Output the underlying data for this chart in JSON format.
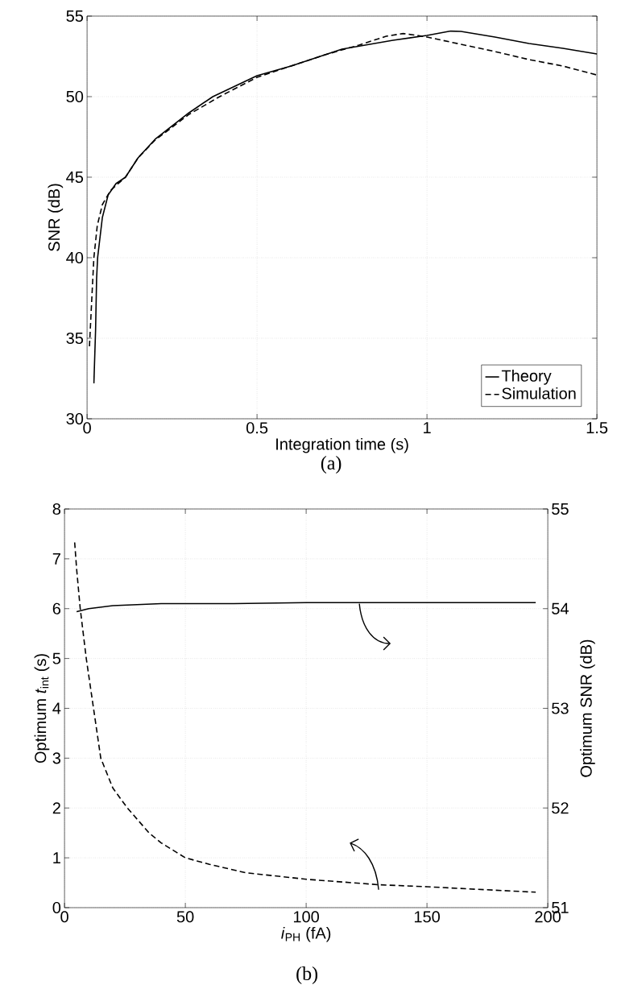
{
  "chart_data": [
    {
      "type": "line",
      "xlabel": "Integration time (s)",
      "ylabel": "SNR (dB)",
      "annotations": [
        "(a)"
      ],
      "xlim": [
        0,
        1.5
      ],
      "ylim": [
        30,
        55
      ],
      "xticks": [
        0,
        0.5,
        1,
        1.5
      ],
      "yticks": [
        30,
        35,
        40,
        45,
        50,
        55
      ],
      "grid": true,
      "legend": "bottom right",
      "series": [
        {
          "name": "Theory",
          "color": "#000000",
          "line_style": "solid",
          "x": [
            0.02,
            0.025,
            0.028,
            0.031,
            0.045,
            0.062,
            0.085,
            0.113,
            0.15,
            0.2,
            0.3,
            0.37,
            0.5,
            0.6,
            0.75,
            0.9,
            1.0,
            1.07,
            1.1,
            1.2,
            1.3,
            1.4,
            1.5
          ],
          "values": [
            32.2,
            35.5,
            38.7,
            40,
            42.5,
            43.9,
            44.6,
            45,
            46.2,
            47.35,
            49.0,
            50,
            51.3,
            51.9,
            52.95,
            53.5,
            53.8,
            54.07,
            54.05,
            53.7,
            53.3,
            53.0,
            52.65
          ]
        },
        {
          "name": "Simulation",
          "color": "#000000",
          "line_style": "dashed",
          "x": [
            0.007,
            0.014,
            0.02,
            0.03,
            0.045,
            0.07,
            0.113,
            0.15,
            0.2,
            0.3,
            0.39,
            0.5,
            0.6,
            0.7,
            0.8,
            0.88,
            0.93,
            0.97,
            1.0,
            1.1,
            1.2,
            1.3,
            1.4,
            1.5
          ],
          "values": [
            34.5,
            37.5,
            40,
            42,
            43.3,
            44.2,
            45,
            46.2,
            47.3,
            48.9,
            50,
            51.2,
            51.9,
            52.6,
            53.2,
            53.75,
            53.92,
            53.8,
            53.7,
            53.25,
            52.8,
            52.3,
            51.9,
            51.34
          ]
        }
      ]
    },
    {
      "type": "line",
      "xlabel": "*i*$_{PH}$ (fA)",
      "ylabel": "Optimum *t*$_{int}$ (s)",
      "y2label": "Optimum SNR (dB)",
      "annotations": [
        "(b)"
      ],
      "xlim": [
        0,
        200
      ],
      "ylim": [
        0,
        8
      ],
      "y2lim": [
        51,
        55
      ],
      "xticks": [
        0,
        50,
        100,
        150,
        200
      ],
      "yticks": [
        0,
        1,
        2,
        3,
        4,
        5,
        6,
        7,
        8
      ],
      "y2ticks": [
        51,
        52,
        53,
        54,
        55
      ],
      "grid": true,
      "series": [
        {
          "color": "#000000",
          "line_style": "dashed",
          "x": [
            4.2,
            5,
            6.5,
            9,
            12,
            15,
            20,
            26,
            35,
            40,
            50,
            60,
            75,
            100,
            130,
            150,
            170,
            195
          ],
          "values": [
            7.33,
            6.8,
            6,
            5,
            4,
            3,
            2.4,
            2,
            1.5,
            1.3,
            1.0,
            0.87,
            0.7,
            0.57,
            0.46,
            0.42,
            0.37,
            0.31
          ]
        },
        {
          "color": "#000000",
          "line_style": "solid",
          "axis": "y2",
          "x": [
            5,
            10,
            20,
            40,
            70,
            100,
            130,
            160,
            195
          ],
          "values": [
            53.97,
            54.0,
            54.03,
            54.05,
            54.05,
            54.06,
            54.06,
            54.06,
            54.06
          ]
        }
      ]
    }
  ]
}
